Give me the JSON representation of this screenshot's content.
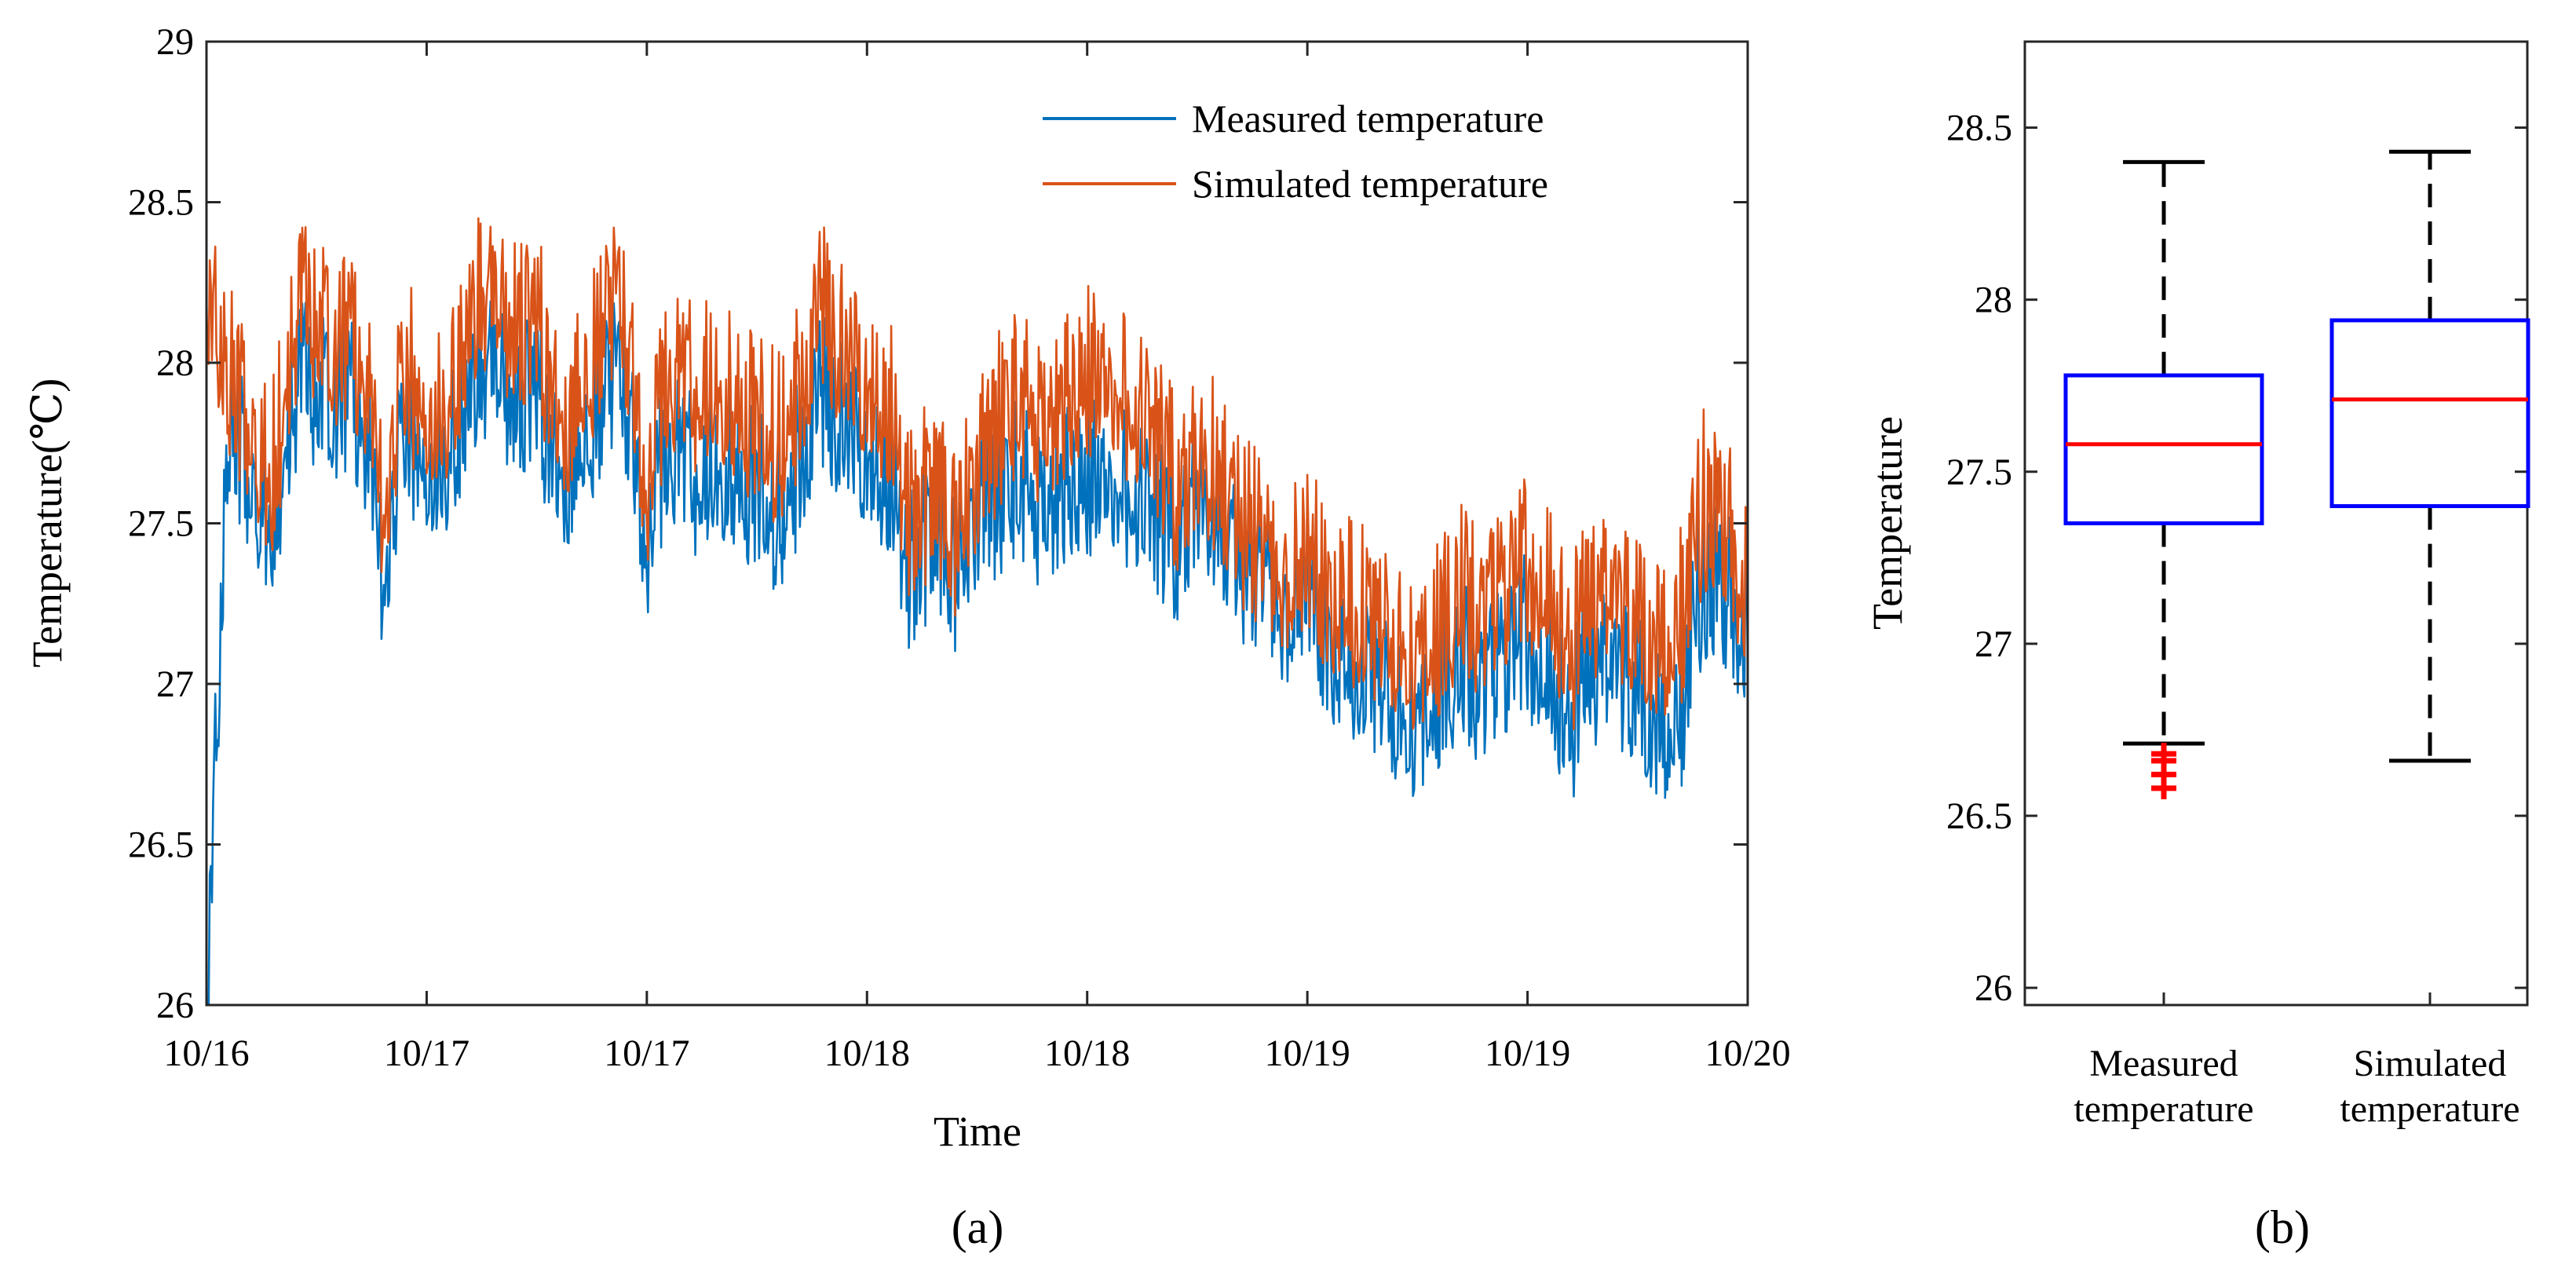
{
  "chart_data": [
    {
      "type": "line",
      "caption": "(a)",
      "xlabel": "Time",
      "ylabel": "Temperature(℃)",
      "ylim": [
        26,
        29
      ],
      "y_ticks": [
        "26",
        "26.5",
        "27",
        "27.5",
        "28",
        "28.5",
        "29"
      ],
      "x_tick_labels": [
        "10/16",
        "10/17",
        "10/17",
        "10/18",
        "10/18",
        "10/19",
        "10/19",
        "10/20"
      ],
      "grid": false,
      "legend_position": "top-right",
      "series": [
        {
          "name": "Measured temperature",
          "color": "#0072BD",
          "x": [
            0.0,
            0.1,
            0.2,
            0.3,
            0.4,
            0.5,
            0.6,
            0.7,
            0.8,
            0.9,
            1.0,
            1.1,
            1.2,
            1.3,
            1.4,
            1.5,
            1.6,
            1.7,
            1.8,
            1.9,
            2.0,
            2.1,
            2.2,
            2.3,
            2.4,
            2.5,
            2.6,
            2.7,
            2.8,
            2.9,
            3.0,
            3.1,
            3.2,
            3.3,
            3.4,
            3.5,
            3.6,
            3.7,
            3.8,
            3.9,
            4.0,
            4.1,
            4.2,
            4.3,
            4.4,
            4.5,
            4.6,
            4.7,
            4.8,
            4.9,
            5.0,
            5.1,
            5.2,
            5.3,
            5.4,
            5.5,
            5.6,
            5.7,
            5.8,
            5.9,
            6.0,
            6.1,
            6.2,
            6.3,
            6.4,
            6.5,
            6.6,
            6.7,
            6.8,
            6.9,
            7.0
          ],
          "y": [
            26.0,
            27.8,
            27.6,
            27.5,
            27.85,
            27.9,
            27.85,
            27.8,
            27.3,
            27.75,
            27.7,
            27.65,
            27.9,
            27.95,
            27.85,
            27.9,
            27.55,
            27.7,
            27.85,
            27.9,
            27.4,
            27.7,
            27.6,
            27.65,
            27.6,
            27.55,
            27.5,
            27.65,
            27.85,
            27.75,
            27.7,
            27.6,
            27.3,
            27.45,
            27.3,
            27.5,
            27.55,
            27.6,
            27.5,
            27.55,
            27.6,
            27.65,
            27.55,
            27.5,
            27.4,
            27.6,
            27.5,
            27.3,
            27.35,
            27.2,
            27.25,
            27.1,
            27.05,
            27.0,
            26.9,
            26.85,
            26.95,
            27.05,
            26.95,
            27.0,
            27.1,
            27.0,
            26.85,
            27.0,
            27.0,
            26.95,
            26.85,
            26.9,
            27.3,
            27.25,
            27.1
          ],
          "stats": {
            "min": 26.0,
            "max": 28.4
          }
        },
        {
          "name": "Simulated temperature",
          "color": "#D95319",
          "x": [
            0.0,
            0.1,
            0.2,
            0.3,
            0.4,
            0.5,
            0.6,
            0.7,
            0.8,
            0.9,
            1.0,
            1.1,
            1.2,
            1.3,
            1.4,
            1.5,
            1.6,
            1.7,
            1.8,
            1.9,
            2.0,
            2.1,
            2.2,
            2.3,
            2.4,
            2.5,
            2.6,
            2.7,
            2.8,
            2.9,
            3.0,
            3.1,
            3.2,
            3.3,
            3.4,
            3.5,
            3.6,
            3.7,
            3.8,
            3.9,
            4.0,
            4.1,
            4.2,
            4.3,
            4.4,
            4.5,
            4.6,
            4.7,
            4.8,
            4.9,
            5.0,
            5.1,
            5.2,
            5.3,
            5.4,
            5.5,
            5.6,
            5.7,
            5.8,
            5.9,
            6.0,
            6.1,
            6.2,
            6.3,
            6.4,
            6.5,
            6.6,
            6.7,
            6.8,
            6.9,
            7.0
          ],
          "y": [
            28.2,
            27.9,
            27.75,
            27.6,
            28.05,
            28.1,
            28.0,
            27.95,
            27.5,
            27.9,
            27.85,
            27.8,
            28.1,
            28.15,
            28.05,
            28.1,
            27.7,
            27.85,
            28.05,
            28.1,
            27.55,
            27.9,
            27.85,
            27.9,
            27.8,
            27.75,
            27.7,
            27.85,
            28.1,
            27.95,
            27.9,
            27.8,
            27.45,
            27.55,
            27.4,
            27.6,
            27.75,
            27.85,
            27.75,
            27.8,
            27.9,
            27.95,
            27.8,
            27.75,
            27.55,
            27.7,
            27.6,
            27.4,
            27.4,
            27.3,
            27.3,
            27.25,
            27.2,
            27.15,
            27.1,
            27.05,
            27.1,
            27.25,
            27.15,
            27.2,
            27.3,
            27.25,
            27.05,
            27.2,
            27.2,
            27.15,
            27.1,
            27.15,
            27.5,
            27.45,
            27.2
          ],
          "stats": {
            "min": 26.7,
            "max": 28.45
          }
        }
      ]
    },
    {
      "type": "box",
      "caption": "(b)",
      "ylabel": "Temperature",
      "ylim": [
        25.95,
        28.75
      ],
      "y_ticks": [
        "26",
        "26.5",
        "27",
        "27.5",
        "28",
        "28.5"
      ],
      "categories": [
        [
          "Measured",
          "temperature"
        ],
        [
          "Simulated",
          "temperature"
        ]
      ],
      "boxes": [
        {
          "whisker_low": 26.71,
          "q1": 27.35,
          "median": 27.58,
          "q3": 27.78,
          "whisker_high": 28.4,
          "outliers": [
            26.68,
            26.66,
            26.62,
            26.58
          ]
        },
        {
          "whisker_low": 26.66,
          "q1": 27.4,
          "median": 27.71,
          "q3": 27.94,
          "whisker_high": 28.43,
          "outliers": []
        }
      ],
      "colors": {
        "box": "#0000FF",
        "median": "#FF0000",
        "whisker": "#000000",
        "outlier": "#FF0000"
      }
    }
  ]
}
